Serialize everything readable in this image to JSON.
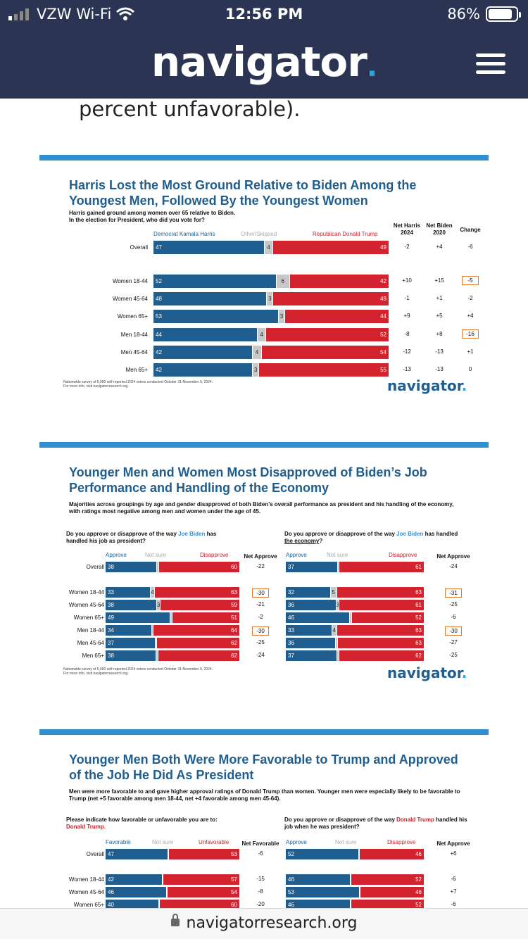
{
  "status_bar": {
    "carrier": "VZW Wi-Fi",
    "time": "12:56 PM",
    "battery": "86%",
    "battery_level": 0.86
  },
  "header": {
    "logo": "navigator",
    "logo_dot": "."
  },
  "lead_text": "percent unfavorable).",
  "url": "navigatorresearch.org",
  "slide1": {
    "title": "Harris Lost the Most Ground Relative to Biden Among the Youngest Men, Followed By the Youngest Women",
    "subtitle": "Harris gained ground among women over 65 relative to Biden.",
    "question": "In the election for President, who did you vote for?",
    "legend_harris": "Democrat Kamala Harris",
    "legend_other": "Other/Skipped",
    "legend_trump": "Republican Donald Trump",
    "col_net_harris": "Net Harris 2024",
    "col_net_biden": "Net Biden 2020",
    "col_change": "Change",
    "footnote1": "Nationwide survey of 5,000 self-reported 2024 voters conducted October 31-November 9, 2024.",
    "footnote2": "For more info, visit navigatorresearch.org.",
    "brand": "navigator",
    "rows": [
      {
        "label": "Overall",
        "harris": "47",
        "other": "4",
        "trump": "49",
        "net_harris": "-2",
        "net_biden": "+4",
        "change": "-6",
        "boxed": false
      },
      {
        "label": "Women 18-44",
        "harris": "52",
        "other": "6",
        "trump": "42",
        "net_harris": "+10",
        "net_biden": "+15",
        "change": "-5",
        "boxed": true
      },
      {
        "label": "Women 45-64",
        "harris": "48",
        "other": "3",
        "trump": "49",
        "net_harris": "-1",
        "net_biden": "+1",
        "change": "-2",
        "boxed": false
      },
      {
        "label": "Women 65+",
        "harris": "53",
        "other": "3",
        "trump": "44",
        "net_harris": "+9",
        "net_biden": "+5",
        "change": "+4",
        "boxed": false
      },
      {
        "label": "Men 18-44",
        "harris": "44",
        "other": "4",
        "trump": "52",
        "net_harris": "-8",
        "net_biden": "+8",
        "change": "-16",
        "boxed": true
      },
      {
        "label": "Men 45-64",
        "harris": "42",
        "other": "4",
        "trump": "54",
        "net_harris": "-12",
        "net_biden": "-13",
        "change": "+1",
        "boxed": false
      },
      {
        "label": "Men 65+",
        "harris": "42",
        "other": "3",
        "trump": "55",
        "net_harris": "-13",
        "net_biden": "-13",
        "change": "0",
        "boxed": false
      }
    ]
  },
  "slide2": {
    "title": "Younger Men and Women Most Disapproved of Biden’s Job Performance and Handling of the Economy",
    "subtitle": "Majorities across groupings by age and gender disapproved of both Biden’s overall performance as president and his handling of the economy, with ratings most negative among men and women under the age of 45.",
    "q_left_a": "Do you approve or disapprove of the way ",
    "q_left_name": "Joe Biden",
    "q_left_b": " has handled his job as president?",
    "q_right_a": "Do you approve or disapprove of the way ",
    "q_right_name": "Joe Biden",
    "q_right_b": " has handled ",
    "q_right_c": "the economy",
    "q_right_d": "?",
    "legend_approve": "Approve",
    "legend_notsure": "Not sure",
    "legend_disapprove": "Disapprove",
    "col_net": "Net Approve",
    "footnote1": "Nationwide survey of 5,000 self-reported 2024 voters conducted October 31-November 9, 2024.",
    "footnote2": "For more info, visit navigatorresearch.org.",
    "brand": "navigator",
    "left_rows": [
      {
        "label": "Overall",
        "approve": "38",
        "notsure": "",
        "disapprove": "60",
        "net": "-22",
        "boxed": false
      },
      {
        "label": "Women 18-44",
        "approve": "33",
        "notsure": "4",
        "disapprove": "63",
        "net": "-30",
        "boxed": true
      },
      {
        "label": "Women 45-64",
        "approve": "38",
        "notsure": "3",
        "disapprove": "59",
        "net": "-21",
        "boxed": false
      },
      {
        "label": "Women 65+",
        "approve": "49",
        "notsure": "",
        "disapprove": "51",
        "net": "-2",
        "boxed": false
      },
      {
        "label": "Men 18-44",
        "approve": "34",
        "notsure": "",
        "disapprove": "64",
        "net": "-30",
        "boxed": true
      },
      {
        "label": "Men 45-64",
        "approve": "37",
        "notsure": "",
        "disapprove": "62",
        "net": "-25",
        "boxed": false
      },
      {
        "label": "Men 65+",
        "approve": "38",
        "notsure": "",
        "disapprove": "62",
        "net": "-24",
        "boxed": false
      }
    ],
    "right_rows": [
      {
        "approve": "37",
        "notsure": "",
        "disapprove": "61",
        "net": "-24",
        "boxed": false
      },
      {
        "approve": "32",
        "notsure": "5",
        "disapprove": "63",
        "net": "-31",
        "boxed": true
      },
      {
        "approve": "36",
        "notsure": "3",
        "disapprove": "61",
        "net": "-25",
        "boxed": false
      },
      {
        "approve": "46",
        "notsure": "",
        "disapprove": "52",
        "net": "-6",
        "boxed": false
      },
      {
        "approve": "33",
        "notsure": "4",
        "disapprove": "63",
        "net": "-30",
        "boxed": true
      },
      {
        "approve": "36",
        "notsure": "",
        "disapprove": "63",
        "net": "-27",
        "boxed": false
      },
      {
        "approve": "37",
        "notsure": "",
        "disapprove": "62",
        "net": "-25",
        "boxed": false
      }
    ]
  },
  "slide3": {
    "title": "Younger Men Both Were More Favorable to Trump and Approved of the Job He Did As President",
    "subtitle": "Men were more favorable to and gave higher approval ratings of Donald Trump than women. Younger men were especially likely to be favorable to Trump (net +5 favorable among men 18-44, net +4 favorable among men 45-64).",
    "q_left_a": "Please indicate how favorable or unfavorable you are to:",
    "q_left_name": "Donald Trump.",
    "q_right_a": "Do you approve or disapprove of the way ",
    "q_right_name": "Donald Trump",
    "q_right_b": " handled his job when he was president?",
    "legend_fav": "Favorable",
    "legend_notsure": "Not sure",
    "legend_unfav": "Unfavorable",
    "col_net_left": "Net Favorable",
    "legend_approve": "Approve",
    "legend_disapprove": "Disapprove",
    "col_net_right": "Net Approve",
    "left_rows": [
      {
        "label": "Overall",
        "a": "47",
        "b": "53",
        "net": "-6"
      },
      {
        "label": "Women 18-44",
        "a": "42",
        "b": "57",
        "net": "-15"
      },
      {
        "label": "Women 45-64",
        "a": "46",
        "b": "54",
        "net": "-8"
      },
      {
        "label": "Women 65+",
        "a": "40",
        "b": "60",
        "net": "-20"
      }
    ],
    "right_rows": [
      {
        "a": "52",
        "b": "46",
        "net": "+6"
      },
      {
        "a": "46",
        "b": "52",
        "net": "-6"
      },
      {
        "a": "53",
        "b": "46",
        "net": "+7"
      },
      {
        "a": "46",
        "b": "52",
        "net": "-6"
      }
    ]
  }
}
